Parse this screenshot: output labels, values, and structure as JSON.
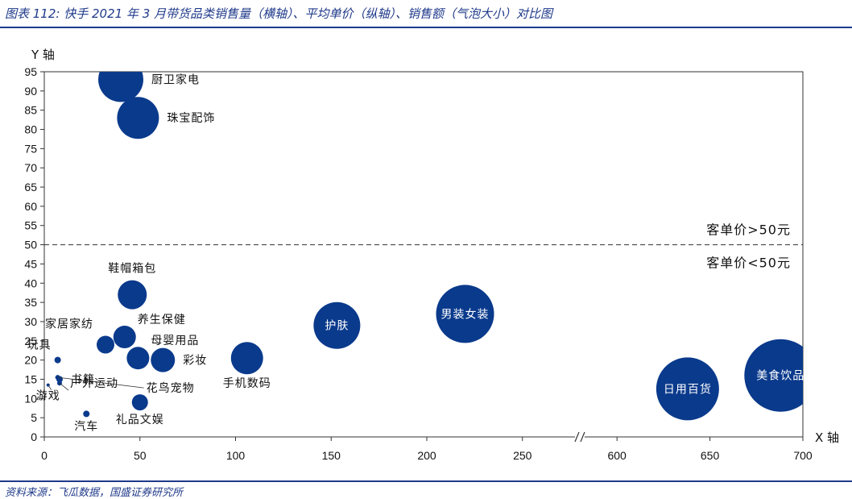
{
  "header": {
    "title": "图表 112: 快手 2021 年 3 月带货品类销售量（横轴）、平均单价（纵轴）、销售额（气泡大小）对比图"
  },
  "footer": {
    "source": "资料来源：飞瓜数据，国盛证券研究所"
  },
  "colors": {
    "bubble": "#0a3a8c",
    "rule": "#1f3a8a"
  },
  "chart_data": {
    "type": "scatter",
    "subtype": "bubble",
    "title": "",
    "xlabel": "X 轴",
    "ylabel": "Y 轴",
    "x_segments": [
      {
        "range": [
          0,
          280
        ],
        "ticks": [
          0,
          50,
          100,
          150,
          200,
          250
        ]
      },
      {
        "range": [
          580,
          700
        ],
        "ticks": [
          600,
          650,
          700
        ]
      }
    ],
    "axis_break": "//",
    "ylim": [
      0,
      95
    ],
    "yticks": [
      0,
      5,
      10,
      15,
      20,
      25,
      30,
      35,
      40,
      45,
      50,
      55,
      60,
      65,
      70,
      75,
      80,
      85,
      90,
      95
    ],
    "grid": false,
    "threshold": {
      "y": 50,
      "label_above": "客单价>50元",
      "label_below": "客单价<50元",
      "style": "dashed"
    },
    "points": [
      {
        "name": "厨卫家电",
        "x": 40,
        "y": 93,
        "size": 28,
        "label_pos": "right"
      },
      {
        "name": "珠宝配饰",
        "x": 49,
        "y": 83,
        "size": 26,
        "label_pos": "right"
      },
      {
        "name": "鞋帽箱包",
        "x": 46,
        "y": 37,
        "size": 18,
        "label_pos": "above"
      },
      {
        "name": "养生保健",
        "x": 42,
        "y": 26,
        "size": 14,
        "label_pos": "above-right"
      },
      {
        "name": "家居家纺",
        "x": 32,
        "y": 24,
        "size": 11,
        "label_pos": "above-left"
      },
      {
        "name": "母婴用品",
        "x": 49,
        "y": 20.5,
        "size": 14,
        "label_pos": "above-right"
      },
      {
        "name": "彩妆",
        "x": 62,
        "y": 20,
        "size": 15,
        "label_pos": "right"
      },
      {
        "name": "玩具",
        "x": 7,
        "y": 20,
        "size": 4,
        "label_pos": "above-left"
      },
      {
        "name": "书籍",
        "x": 8,
        "y": 15,
        "size": 4,
        "label_pos": "right"
      },
      {
        "name": "户外运动",
        "x": 8,
        "y": 14,
        "size": 3,
        "label_pos": "right"
      },
      {
        "name": "花鸟宠物",
        "x": 7,
        "y": 15.5,
        "size": 3,
        "label_pos": "right-far"
      },
      {
        "name": "游戏",
        "x": 2,
        "y": 13.5,
        "size": 2,
        "label_pos": "below"
      },
      {
        "name": "礼品文娱",
        "x": 50,
        "y": 9,
        "size": 10,
        "label_pos": "below"
      },
      {
        "name": "汽车",
        "x": 22,
        "y": 6,
        "size": 4,
        "label_pos": "below"
      },
      {
        "name": "手机数码",
        "x": 106,
        "y": 20.5,
        "size": 20,
        "label_pos": "below"
      },
      {
        "name": "护肤",
        "x": 153,
        "y": 29,
        "size": 29,
        "label_pos": "inside"
      },
      {
        "name": "男装女装",
        "x": 220,
        "y": 32,
        "size": 36,
        "label_pos": "inside"
      },
      {
        "name": "日用百货",
        "x": 638,
        "y": 12.5,
        "size": 39,
        "label_pos": "inside"
      },
      {
        "name": "美食饮品",
        "x": 688,
        "y": 16,
        "size": 45,
        "label_pos": "inside"
      }
    ]
  }
}
